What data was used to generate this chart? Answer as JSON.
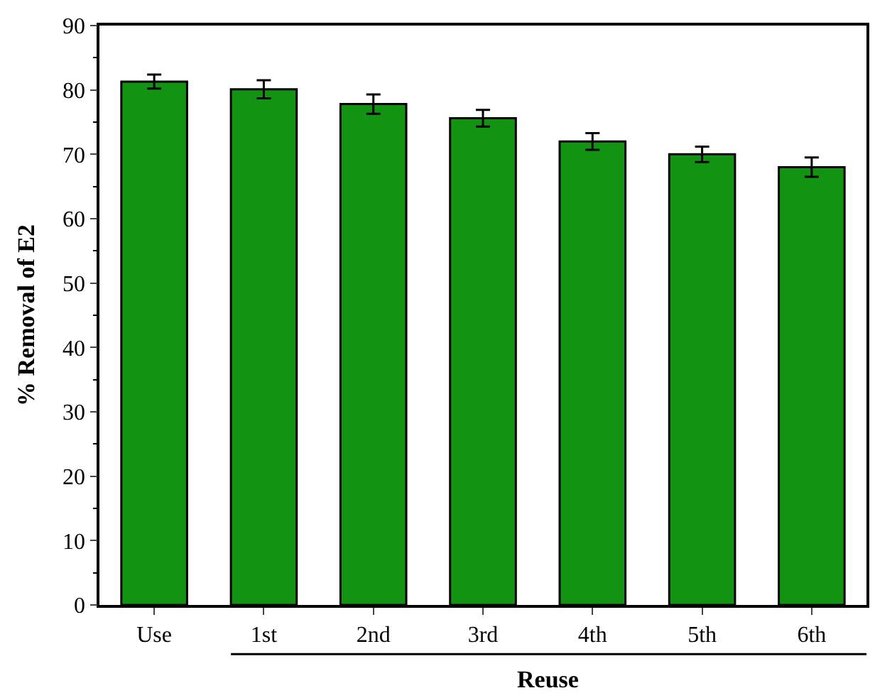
{
  "chart_data": {
    "type": "bar",
    "xlabel": "Reuse",
    "ylabel": "% Removal of E2",
    "categories": [
      "Use",
      "1st",
      "2nd",
      "3rd",
      "4th",
      "5th",
      "6th"
    ],
    "series": [
      {
        "color": "#129412",
        "values": [
          81.3,
          80.1,
          77.8,
          75.6,
          72.0,
          70.0,
          68.0
        ],
        "errors": [
          1.1,
          1.4,
          1.5,
          1.3,
          1.3,
          1.2,
          1.5
        ]
      }
    ],
    "ylim": [
      0,
      90
    ],
    "yticks": [
      0,
      10,
      20,
      30,
      40,
      50,
      60,
      70,
      80,
      90
    ]
  }
}
